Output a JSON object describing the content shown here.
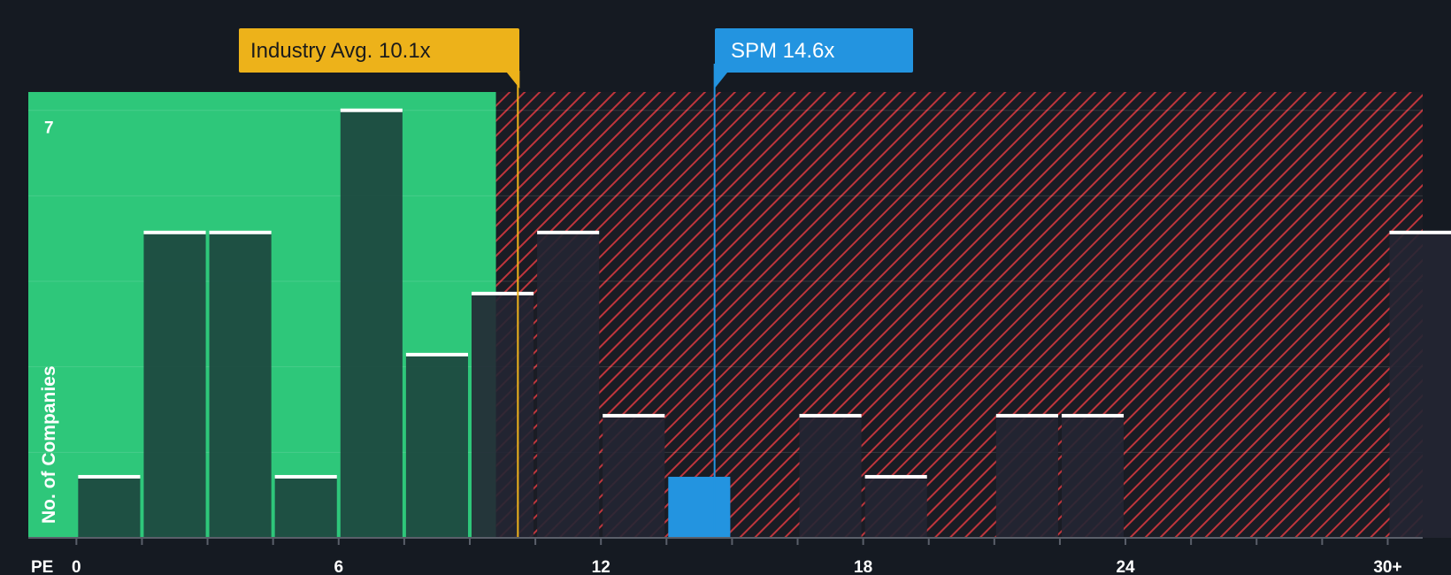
{
  "chart_data": {
    "type": "bar",
    "title": "",
    "xlabel": "PE",
    "ylabel": "No. of Companies",
    "x_tick_labels": [
      "0",
      "6",
      "12",
      "18",
      "24",
      "30+"
    ],
    "x_ticks": [
      0,
      6,
      12,
      18,
      24,
      30
    ],
    "y_tick_labels": [
      "7"
    ],
    "y_ticks": [
      7
    ],
    "xlim": [
      -1.1,
      30.8
    ],
    "ylim": [
      0,
      7.3
    ],
    "bin_width": 1.5,
    "bins": [
      {
        "start": 0.0,
        "value": 1
      },
      {
        "start": 1.5,
        "value": 5
      },
      {
        "start": 3.0,
        "value": 5
      },
      {
        "start": 4.5,
        "value": 1
      },
      {
        "start": 6.0,
        "value": 7
      },
      {
        "start": 7.5,
        "value": 3
      },
      {
        "start": 9.0,
        "value": 4
      },
      {
        "start": 10.5,
        "value": 5
      },
      {
        "start": 12.0,
        "value": 2
      },
      {
        "start": 13.5,
        "value": 1
      },
      {
        "start": 16.5,
        "value": 2
      },
      {
        "start": 18.0,
        "value": 1
      },
      {
        "start": 21.0,
        "value": 2
      },
      {
        "start": 22.5,
        "value": 2
      },
      {
        "start": 30.0,
        "value": 5
      }
    ],
    "fair_range_end": 9.6,
    "industry_avg": {
      "label": "Industry Avg. 10.1x",
      "value": 10.1
    },
    "company": {
      "label": "SPM 14.6x",
      "value": 14.6,
      "bin_start": 13.5
    },
    "grid": true,
    "legend": "none"
  },
  "colors": {
    "background": "#151a22",
    "fair_zone": "#2ec77a",
    "bar_fair": "#1e4a40",
    "bar_over": "#232633",
    "hatch": "#c0353c",
    "hatch_bg": "#1a1c24",
    "industry": "#edb21a",
    "company": "#2394e0",
    "bar_top": "#ffffff"
  }
}
